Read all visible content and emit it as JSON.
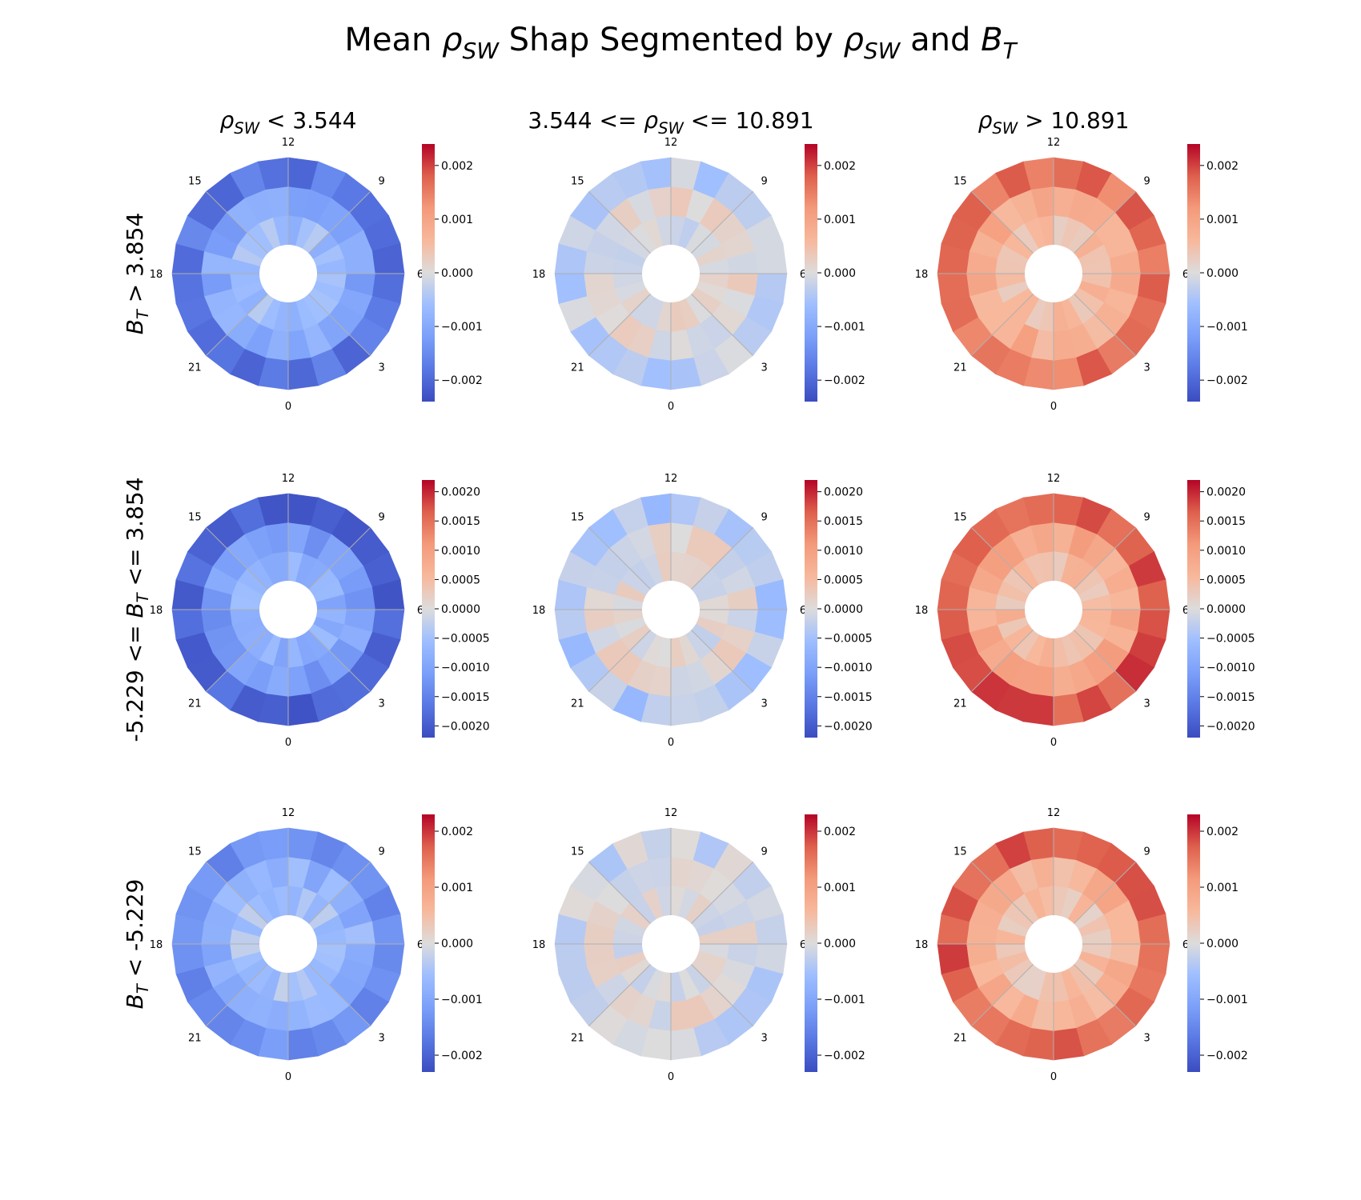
{
  "title": {
    "pre": "Mean ",
    "sym": "ρ",
    "sub": "SW",
    "mid": " Shap Segmented by ",
    "sym2": "ρ",
    "sub2": "SW",
    "and": " and ",
    "sym3": "B",
    "sub3": "T"
  },
  "columns": [
    {
      "pre": "",
      "sym": "ρ",
      "sub": "SW",
      "post": " < 3.544"
    },
    {
      "pre": "3.544 <= ",
      "sym": "ρ",
      "sub": "SW",
      "post": " <= 10.891"
    },
    {
      "pre": "",
      "sym": "ρ",
      "sub": "SW",
      "post": " > 10.891"
    }
  ],
  "rows": [
    {
      "pre": "",
      "sym": "B",
      "sub": "T",
      "post": " > 3.854"
    },
    {
      "pre": "-5.229 <= ",
      "sym": "B",
      "sub": "T",
      "post": " <= 3.854"
    },
    {
      "pre": "",
      "sym": "B",
      "sub": "T",
      "post": " < -5.229"
    }
  ],
  "chart_data": {
    "type": "heatmap",
    "projection": "polar (magnetic local time)",
    "colormap": "coolwarm",
    "mlt_labels": [
      "12",
      "9",
      "6",
      "3",
      "0",
      "21",
      "18",
      "15"
    ],
    "grid": true,
    "rings": 3,
    "sectors": 24,
    "row_scales": [
      {
        "vmin": -0.0024,
        "vmax": 0.0024,
        "ticks": [
          0.002,
          0.001,
          0.0,
          -0.001,
          -0.002
        ],
        "tick_labels": [
          "0.002",
          "0.001",
          "0.000",
          "−0.001",
          "−0.002"
        ]
      },
      {
        "vmin": -0.0022,
        "vmax": 0.0022,
        "ticks": [
          0.002,
          0.0015,
          0.001,
          0.0005,
          0.0,
          -0.0005,
          -0.001,
          -0.0015,
          -0.002
        ],
        "tick_labels": [
          "0.0020",
          "0.0015",
          "0.0010",
          "0.0005",
          "0.0000",
          "−0.0005",
          "−0.0010",
          "−0.0015",
          "−0.0020"
        ]
      },
      {
        "vmin": -0.0023,
        "vmax": 0.0023,
        "ticks": [
          0.002,
          0.001,
          0.0,
          -0.001,
          -0.002
        ],
        "tick_labels": [
          "0.002",
          "0.001",
          "0.000",
          "−0.001",
          "−0.002"
        ]
      }
    ],
    "panel_means": [
      [
        {
          "inner": -0.0006,
          "middle": -0.001,
          "outer": -0.0018
        },
        {
          "inner": 0.0,
          "middle": 5e-05,
          "outer": -0.0003
        },
        {
          "inner": 0.0005,
          "middle": 0.0008,
          "outer": 0.0016
        }
      ],
      [
        {
          "inner": -0.0008,
          "middle": -0.0011,
          "outer": -0.0019
        },
        {
          "inner": 0.0,
          "middle": 3e-05,
          "outer": -0.0004
        },
        {
          "inner": 0.0005,
          "middle": 0.0008,
          "outer": 0.0017
        }
      ],
      [
        {
          "inner": -0.0005,
          "middle": -0.0008,
          "outer": -0.0014
        },
        {
          "inner": 0.0,
          "middle": 5e-05,
          "outer": -0.0002
        },
        {
          "inner": 0.0004,
          "middle": 0.0007,
          "outer": 0.0017
        }
      ]
    ]
  }
}
